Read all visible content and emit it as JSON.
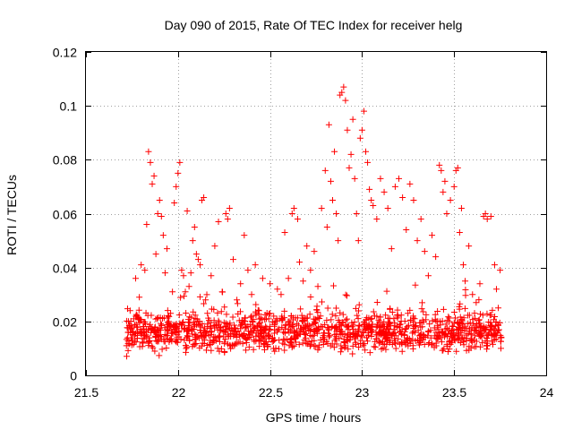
{
  "chart_data": {
    "type": "scatter",
    "title": "Day 090 of 2015, Rate Of TEC Index for receiver helg",
    "xlabel": "GPS time / hours",
    "ylabel": "ROTI / TECUs",
    "xlim": [
      21.5,
      24
    ],
    "ylim": [
      0,
      0.12
    ],
    "x_ticks": [
      21.5,
      22,
      22.5,
      23,
      23.5,
      24
    ],
    "x_tick_labels": [
      "21.5",
      "22",
      "22.5",
      "23",
      "23.5",
      "24"
    ],
    "y_ticks": [
      0,
      0.02,
      0.04,
      0.06,
      0.08,
      0.1,
      0.12
    ],
    "y_tick_labels": [
      "0",
      "0.02",
      "0.04",
      "0.06",
      "0.08",
      "0.1",
      "0.12"
    ],
    "grid": true,
    "marker": "+",
    "color": "#ff0000",
    "series": [
      {
        "name": "ROTI",
        "points": [
          [
            21.72,
            0.011
          ],
          [
            21.73,
            0.016
          ],
          [
            21.74,
            0.024
          ],
          [
            21.75,
            0.013
          ],
          [
            21.76,
            0.021
          ],
          [
            21.77,
            0.036
          ],
          [
            21.78,
            0.018
          ],
          [
            21.79,
            0.029
          ],
          [
            21.8,
            0.041
          ],
          [
            21.81,
            0.012
          ],
          [
            21.82,
            0.039
          ],
          [
            21.83,
            0.056
          ],
          [
            21.84,
            0.083
          ],
          [
            21.85,
            0.079
          ],
          [
            21.86,
            0.071
          ],
          [
            21.87,
            0.074
          ],
          [
            21.88,
            0.045
          ],
          [
            21.89,
            0.06
          ],
          [
            21.9,
            0.065
          ],
          [
            21.91,
            0.059
          ],
          [
            21.92,
            0.052
          ],
          [
            21.93,
            0.038
          ],
          [
            21.94,
            0.047
          ],
          [
            21.95,
            0.02
          ],
          [
            21.96,
            0.023
          ],
          [
            21.97,
            0.031
          ],
          [
            21.98,
            0.064
          ],
          [
            21.99,
            0.07
          ],
          [
            22.0,
            0.075
          ],
          [
            22.01,
            0.079
          ],
          [
            22.02,
            0.039
          ],
          [
            22.03,
            0.037
          ],
          [
            22.04,
            0.031
          ],
          [
            22.05,
            0.061
          ],
          [
            22.06,
            0.033
          ],
          [
            22.07,
            0.038
          ],
          [
            22.08,
            0.05
          ],
          [
            22.09,
            0.055
          ],
          [
            22.1,
            0.045
          ],
          [
            22.11,
            0.043
          ],
          [
            22.12,
            0.041
          ],
          [
            22.13,
            0.065
          ],
          [
            22.14,
            0.066
          ],
          [
            22.15,
            0.028
          ],
          [
            22.16,
            0.023
          ],
          [
            22.18,
            0.037
          ],
          [
            22.2,
            0.048
          ],
          [
            22.22,
            0.057
          ],
          [
            22.24,
            0.031
          ],
          [
            22.26,
            0.06
          ],
          [
            22.27,
            0.058
          ],
          [
            22.28,
            0.062
          ],
          [
            22.3,
            0.043
          ],
          [
            22.32,
            0.028
          ],
          [
            22.34,
            0.034
          ],
          [
            22.36,
            0.052
          ],
          [
            22.38,
            0.039
          ],
          [
            22.4,
            0.03
          ],
          [
            22.42,
            0.041
          ],
          [
            22.44,
            0.024
          ],
          [
            22.46,
            0.036
          ],
          [
            22.48,
            0.021
          ],
          [
            22.5,
            0.034
          ],
          [
            22.52,
            0.022
          ],
          [
            22.54,
            0.032
          ],
          [
            22.56,
            0.03
          ],
          [
            22.58,
            0.053
          ],
          [
            22.6,
            0.036
          ],
          [
            22.62,
            0.06
          ],
          [
            22.63,
            0.062
          ],
          [
            22.65,
            0.058
          ],
          [
            22.66,
            0.042
          ],
          [
            22.68,
            0.035
          ],
          [
            22.7,
            0.048
          ],
          [
            22.72,
            0.039
          ],
          [
            22.74,
            0.046
          ],
          [
            22.76,
            0.033
          ],
          [
            22.78,
            0.062
          ],
          [
            22.8,
            0.076
          ],
          [
            22.81,
            0.055
          ],
          [
            22.82,
            0.093
          ],
          [
            22.83,
            0.072
          ],
          [
            22.84,
            0.065
          ],
          [
            22.85,
            0.083
          ],
          [
            22.86,
            0.06
          ],
          [
            22.87,
            0.05
          ],
          [
            22.88,
            0.104
          ],
          [
            22.89,
            0.105
          ],
          [
            22.9,
            0.107
          ],
          [
            22.91,
            0.102
          ],
          [
            22.92,
            0.091
          ],
          [
            22.93,
            0.077
          ],
          [
            22.94,
            0.082
          ],
          [
            22.95,
            0.095
          ],
          [
            22.96,
            0.073
          ],
          [
            22.97,
            0.06
          ],
          [
            22.98,
            0.05
          ],
          [
            22.99,
            0.088
          ],
          [
            23.0,
            0.091
          ],
          [
            23.01,
            0.098
          ],
          [
            23.02,
            0.083
          ],
          [
            23.03,
            0.079
          ],
          [
            23.04,
            0.069
          ],
          [
            23.05,
            0.065
          ],
          [
            23.06,
            0.063
          ],
          [
            23.08,
            0.058
          ],
          [
            23.1,
            0.073
          ],
          [
            23.12,
            0.068
          ],
          [
            23.14,
            0.062
          ],
          [
            23.16,
            0.047
          ],
          [
            23.18,
            0.07
          ],
          [
            23.2,
            0.073
          ],
          [
            23.22,
            0.066
          ],
          [
            23.24,
            0.054
          ],
          [
            23.26,
            0.071
          ],
          [
            23.28,
            0.065
          ],
          [
            23.3,
            0.05
          ],
          [
            23.32,
            0.058
          ],
          [
            23.34,
            0.046
          ],
          [
            23.36,
            0.037
          ],
          [
            23.38,
            0.052
          ],
          [
            23.4,
            0.044
          ],
          [
            23.42,
            0.078
          ],
          [
            23.43,
            0.076
          ],
          [
            23.44,
            0.068
          ],
          [
            23.45,
            0.072
          ],
          [
            23.46,
            0.06
          ],
          [
            23.48,
            0.065
          ],
          [
            23.5,
            0.07
          ],
          [
            23.51,
            0.076
          ],
          [
            23.52,
            0.077
          ],
          [
            23.53,
            0.053
          ],
          [
            23.54,
            0.062
          ],
          [
            23.55,
            0.041
          ],
          [
            23.56,
            0.035
          ],
          [
            23.58,
            0.048
          ],
          [
            23.6,
            0.03
          ],
          [
            23.62,
            0.027
          ],
          [
            23.64,
            0.034
          ],
          [
            23.66,
            0.059
          ],
          [
            23.67,
            0.06
          ],
          [
            23.68,
            0.058
          ],
          [
            23.7,
            0.059
          ],
          [
            23.72,
            0.041
          ],
          [
            23.73,
            0.032
          ],
          [
            23.74,
            0.025
          ],
          [
            23.75,
            0.039
          ]
        ]
      }
    ],
    "band": {
      "x_range": [
        21.72,
        23.76
      ],
      "typical_range": [
        0.006,
        0.022
      ],
      "count": 1300
    }
  }
}
